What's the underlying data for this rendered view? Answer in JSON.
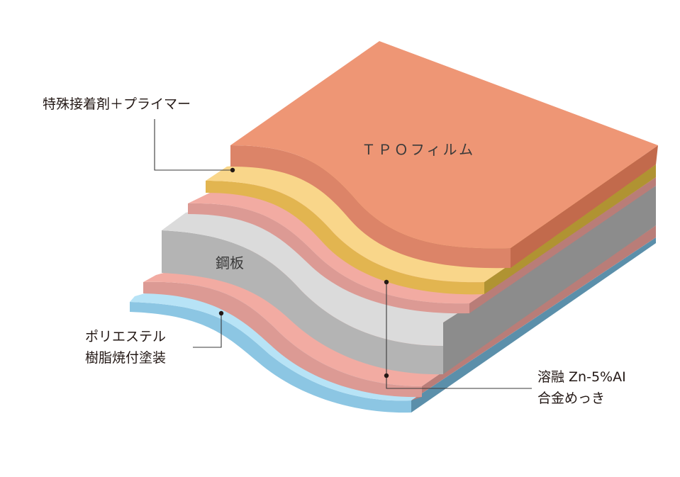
{
  "layers": [
    {
      "key": "tpo",
      "label": "ＴＰＯフィルム",
      "colors": {
        "top": "#EE9675",
        "side": "#C26A4C",
        "wave": "#DC8468"
      }
    },
    {
      "key": "adhesive",
      "label": "特殊接着剤＋プライマー",
      "colors": {
        "top": "#F9D68A",
        "side": "#B09332",
        "wave": "#E2B550"
      }
    },
    {
      "key": "plating_top",
      "colors": {
        "top": "#F2ABA2",
        "side": "#B97D78",
        "wave": "#DC9A94"
      }
    },
    {
      "key": "steel",
      "label": "鋼板",
      "colors": {
        "top": "#DBDBDB",
        "side": "#8C8C8C",
        "wave": "#B4B4B4"
      }
    },
    {
      "key": "plating_bottom",
      "colors": {
        "top": "#F2ABA2",
        "side": "#B97D78",
        "wave": "#DC9A94"
      }
    },
    {
      "key": "polyester",
      "colors": {
        "top": "#B7E3F6",
        "side": "#5B8FAA",
        "wave": "#8CC6E3"
      }
    }
  ],
  "callouts": {
    "adhesive": "特殊接着剤＋プライマー",
    "tpo": "ＴＰＯフィルム",
    "steel": "鋼板",
    "polyester_line1": "ポリエステル",
    "polyester_line2": "樹脂焼付塗装",
    "plating_line1": "溶融 Zn-5%AI",
    "plating_line2": "合金めっき"
  }
}
